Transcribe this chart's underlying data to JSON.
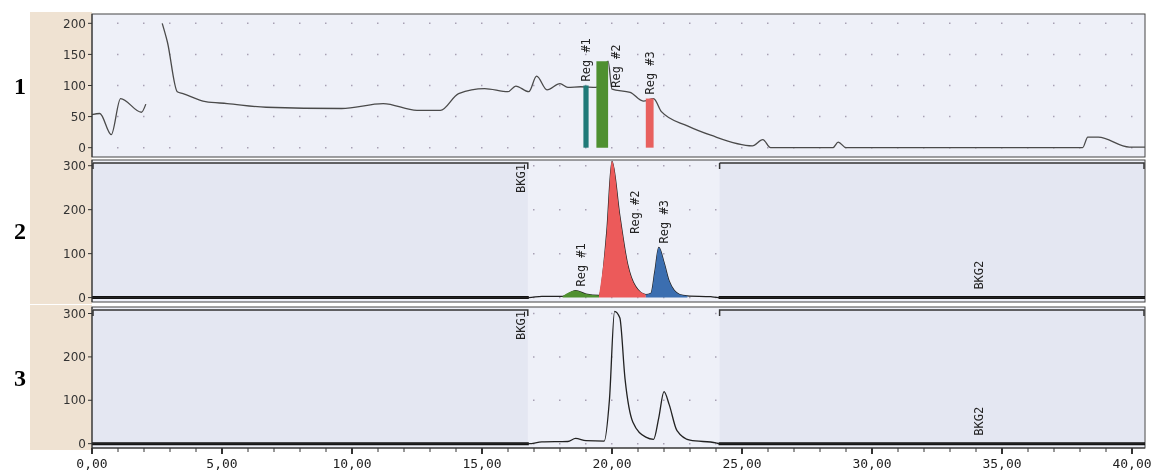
{
  "chart_data": [
    {
      "type": "line",
      "title": "1",
      "xlim": [
        0,
        40.5
      ],
      "ylim": [
        -15,
        215
      ],
      "yticks": [
        0,
        50,
        100,
        150,
        200
      ],
      "tick_labels": "y",
      "grid": "y",
      "series": [
        {
          "type": "line",
          "color": "#4a4a4a",
          "x": [
            0,
            0.3,
            0.74,
            1.1,
            1.9,
            2.07,
            2.2,
            2.5,
            2.7,
            2.9,
            3.28,
            3.5,
            4.37,
            5.2,
            6.7,
            9.6,
            11.2,
            12.5,
            13.4,
            14.1,
            15.1,
            16,
            16.3,
            16.8,
            17.1,
            17.5,
            18,
            18.3,
            18.8,
            19.4,
            19.85,
            20.0,
            20.7,
            21.2,
            21.6,
            21.9,
            22.9,
            23.8,
            25.4,
            25.8,
            26.1,
            28.5,
            28.7,
            29.0,
            38.1,
            38.3,
            38.7,
            39.9,
            40.5
          ],
          "values": [
            53,
            55,
            21,
            79,
            57,
            70,
            null,
            null,
            200,
            170,
            90,
            87,
            74,
            71,
            65,
            63,
            71,
            60,
            60,
            87,
            95,
            90,
            99,
            90,
            115,
            93,
            103,
            97,
            98,
            97,
            139,
            94,
            89,
            75,
            79,
            58,
            35,
            20,
            3,
            13,
            0,
            0,
            9,
            0,
            0,
            17,
            17,
            1,
            1
          ]
        },
        {
          "type": "area",
          "name": "Reg #1",
          "color": "#1f7a78",
          "x": [
            18.9,
            19.1
          ],
          "values": [
            100,
            100
          ]
        },
        {
          "type": "area",
          "name": "Reg #2",
          "color": "#4f9030",
          "x": [
            19.4,
            19.85
          ],
          "values": [
            139,
            139
          ]
        },
        {
          "type": "area",
          "name": "Reg #3",
          "color": "#e8605e",
          "x": [
            21.3,
            21.6
          ],
          "values": [
            79,
            79
          ]
        }
      ]
    },
    {
      "type": "line",
      "title": "2",
      "xlim": [
        0,
        40.5
      ],
      "ylim": [
        -10,
        313
      ],
      "yticks": [
        0,
        100,
        200,
        300
      ],
      "tick_labels": "y",
      "grid": "y",
      "bands": [
        {
          "axis": "x",
          "from": 0,
          "to": 16.8,
          "label": "BKG1"
        },
        {
          "axis": "x",
          "from": 24.1,
          "to": 40.5,
          "label": "BKG2"
        }
      ],
      "series": [
        {
          "type": "line",
          "color": "#222222",
          "x": [
            0,
            16.8,
            17.3,
            18.1,
            18.6,
            19.0,
            19.5,
            19.8,
            20.0,
            20.3,
            20.6,
            20.9,
            21.3,
            21.5,
            21.65,
            21.8,
            22.0,
            22.2,
            22.6,
            22.9,
            23.8,
            24.1,
            40.5
          ],
          "values": [
            0,
            0,
            3,
            3,
            16,
            8,
            5,
            150,
            310,
            186,
            76,
            26,
            7,
            10,
            60,
            114,
            80,
            37,
            7,
            4,
            2,
            0,
            0
          ]
        },
        {
          "type": "area",
          "name": "Reg #1",
          "color": "#4f9030",
          "x": [
            18.1,
            18.6,
            19.0,
            19.5
          ],
          "values": [
            3,
            16,
            8,
            5
          ]
        },
        {
          "type": "area",
          "name": "Reg #2",
          "color": "#ec5a5a",
          "x": [
            19.5,
            19.8,
            20.0,
            20.3,
            20.6,
            20.9,
            21.3
          ],
          "values": [
            5,
            150,
            310,
            186,
            76,
            26,
            7
          ]
        },
        {
          "type": "area",
          "name": "Reg #3",
          "color": "#3b6eb0",
          "x": [
            21.3,
            21.5,
            21.65,
            21.8,
            22.0,
            22.2,
            22.6,
            22.9
          ],
          "values": [
            7,
            10,
            60,
            114,
            80,
            37,
            7,
            4
          ]
        }
      ]
    },
    {
      "type": "line",
      "title": "3",
      "xlim": [
        0,
        40.5
      ],
      "ylim": [
        -10,
        315
      ],
      "yticks": [
        0,
        100,
        200,
        300
      ],
      "grid": "y",
      "xticks": [
        {
          "value": 0,
          "label": "0,00"
        },
        {
          "value": 1,
          "label": null
        },
        {
          "value": 2,
          "label": null
        },
        {
          "value": 3,
          "label": null
        },
        {
          "value": 4,
          "label": null
        },
        {
          "value": 5,
          "label": "5,00"
        },
        {
          "value": 6,
          "label": null
        },
        {
          "value": 7,
          "label": null
        },
        {
          "value": 8,
          "label": null
        },
        {
          "value": 9,
          "label": null
        },
        {
          "value": 10,
          "label": "10,00"
        },
        {
          "value": 11,
          "label": null
        },
        {
          "value": 12,
          "label": null
        },
        {
          "value": 13,
          "label": null
        },
        {
          "value": 14,
          "label": null
        },
        {
          "value": 15,
          "label": "15,00"
        },
        {
          "value": 16,
          "label": null
        },
        {
          "value": 17,
          "label": null
        },
        {
          "value": 18,
          "label": null
        },
        {
          "value": 19,
          "label": null
        },
        {
          "value": 20,
          "label": "20,00"
        },
        {
          "value": 21,
          "label": null
        },
        {
          "value": 22,
          "label": null
        },
        {
          "value": 23,
          "label": null
        },
        {
          "value": 24,
          "label": null
        },
        {
          "value": 25,
          "label": "25,00"
        },
        {
          "value": 26,
          "label": null
        },
        {
          "value": 27,
          "label": null
        },
        {
          "value": 28,
          "label": null
        },
        {
          "value": 29,
          "label": null
        },
        {
          "value": 30,
          "label": "30,00"
        },
        {
          "value": 31,
          "label": null
        },
        {
          "value": 32,
          "label": null
        },
        {
          "value": 33,
          "label": null
        },
        {
          "value": 34,
          "label": null
        },
        {
          "value": 35,
          "label": "35,00"
        },
        {
          "value": 36,
          "label": null
        },
        {
          "value": 37,
          "label": null
        },
        {
          "value": 38,
          "label": null
        },
        {
          "value": 39,
          "label": null
        },
        {
          "value": 40,
          "label": "40,00"
        }
      ],
      "bands": [
        {
          "axis": "x",
          "from": 0,
          "to": 16.8,
          "label": "BKG1"
        },
        {
          "axis": "x",
          "from": 24.1,
          "to": 40.5,
          "label": "BKG2"
        }
      ],
      "series": [
        {
          "type": "line",
          "color": "#222222",
          "x": [
            0,
            16.8,
            17.3,
            18.3,
            18.6,
            19.0,
            19.7,
            19.9,
            20.1,
            20.3,
            20.5,
            20.8,
            21.3,
            21.6,
            21.8,
            22.0,
            22.2,
            22.5,
            23.0,
            24.0,
            24.1,
            40.5
          ],
          "values": [
            0,
            0,
            4,
            5,
            12,
            7,
            6,
            100,
            305,
            290,
            150,
            50,
            15,
            10,
            60,
            120,
            90,
            30,
            8,
            2,
            0,
            0
          ]
        }
      ]
    }
  ]
}
